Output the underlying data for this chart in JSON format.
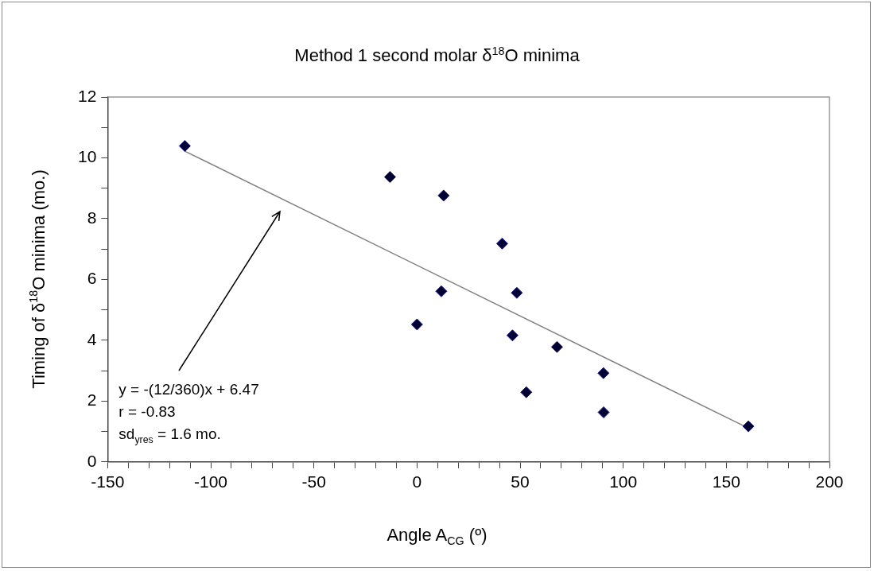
{
  "chart_data": {
    "type": "scatter",
    "title": "Method 1 second molar δ$^{18}$O minima",
    "xlabel": "Angle A$_{CG}$ (º)",
    "ylabel": "Timing of δ$^{18}$O minima (mo.)",
    "marker": "diamond",
    "series": [
      {
        "type": "scatter",
        "color": "#000033",
        "x": [
          -112.6,
          -13.1,
          12.9,
          11.8,
          0,
          41.3,
          48.4,
          46.3,
          67.9,
          53.0,
          90.4,
          90.5,
          160.7
        ],
        "values": [
          10.39,
          9.37,
          8.76,
          5.61,
          4.52,
          7.18,
          5.56,
          4.16,
          3.78,
          2.29,
          2.92,
          1.63,
          1.17
        ]
      },
      {
        "type": "line",
        "marker": "none",
        "color": "#808080",
        "x": [
          -112.6,
          160.7
        ],
        "values": [
          10.22,
          1.11
        ]
      }
    ],
    "xlim": [
      -150,
      200
    ],
    "ylim": [
      0,
      12
    ],
    "xticks": [
      -150,
      {
        "value": -140,
        "label": null
      },
      {
        "value": -130,
        "label": null
      },
      {
        "value": -120,
        "label": null
      },
      {
        "value": -110,
        "label": null
      },
      -100,
      {
        "value": -90,
        "label": null
      },
      {
        "value": -80,
        "label": null
      },
      {
        "value": -70,
        "label": null
      },
      {
        "value": -60,
        "label": null
      },
      -50,
      {
        "value": -40,
        "label": null
      },
      {
        "value": -30,
        "label": null
      },
      {
        "value": -20,
        "label": null
      },
      {
        "value": -10,
        "label": null
      },
      0,
      {
        "value": 10,
        "label": null
      },
      {
        "value": 20,
        "label": null
      },
      {
        "value": 30,
        "label": null
      },
      {
        "value": 40,
        "label": null
      },
      50,
      {
        "value": 60,
        "label": null
      },
      {
        "value": 70,
        "label": null
      },
      {
        "value": 80,
        "label": null
      },
      {
        "value": 90,
        "label": null
      },
      100,
      {
        "value": 110,
        "label": null
      },
      {
        "value": 120,
        "label": null
      },
      {
        "value": 130,
        "label": null
      },
      {
        "value": 140,
        "label": null
      },
      150,
      {
        "value": 160,
        "label": null
      },
      {
        "value": 170,
        "label": null
      },
      {
        "value": 180,
        "label": null
      },
      {
        "value": 190,
        "label": null
      },
      200
    ],
    "yticks": [
      0,
      {
        "value": 1,
        "label": null
      },
      2,
      {
        "value": 3,
        "label": null
      },
      4,
      {
        "value": 5,
        "label": null
      },
      6,
      {
        "value": 7,
        "label": null
      },
      8,
      {
        "value": 9,
        "label": null
      },
      10,
      {
        "value": 11,
        "label": null
      },
      12
    ],
    "annotations": [
      "y = -(12/360)x + 6.47\nr = -0.83\nsd$_{yres}$ = 1.6 mo."
    ]
  }
}
